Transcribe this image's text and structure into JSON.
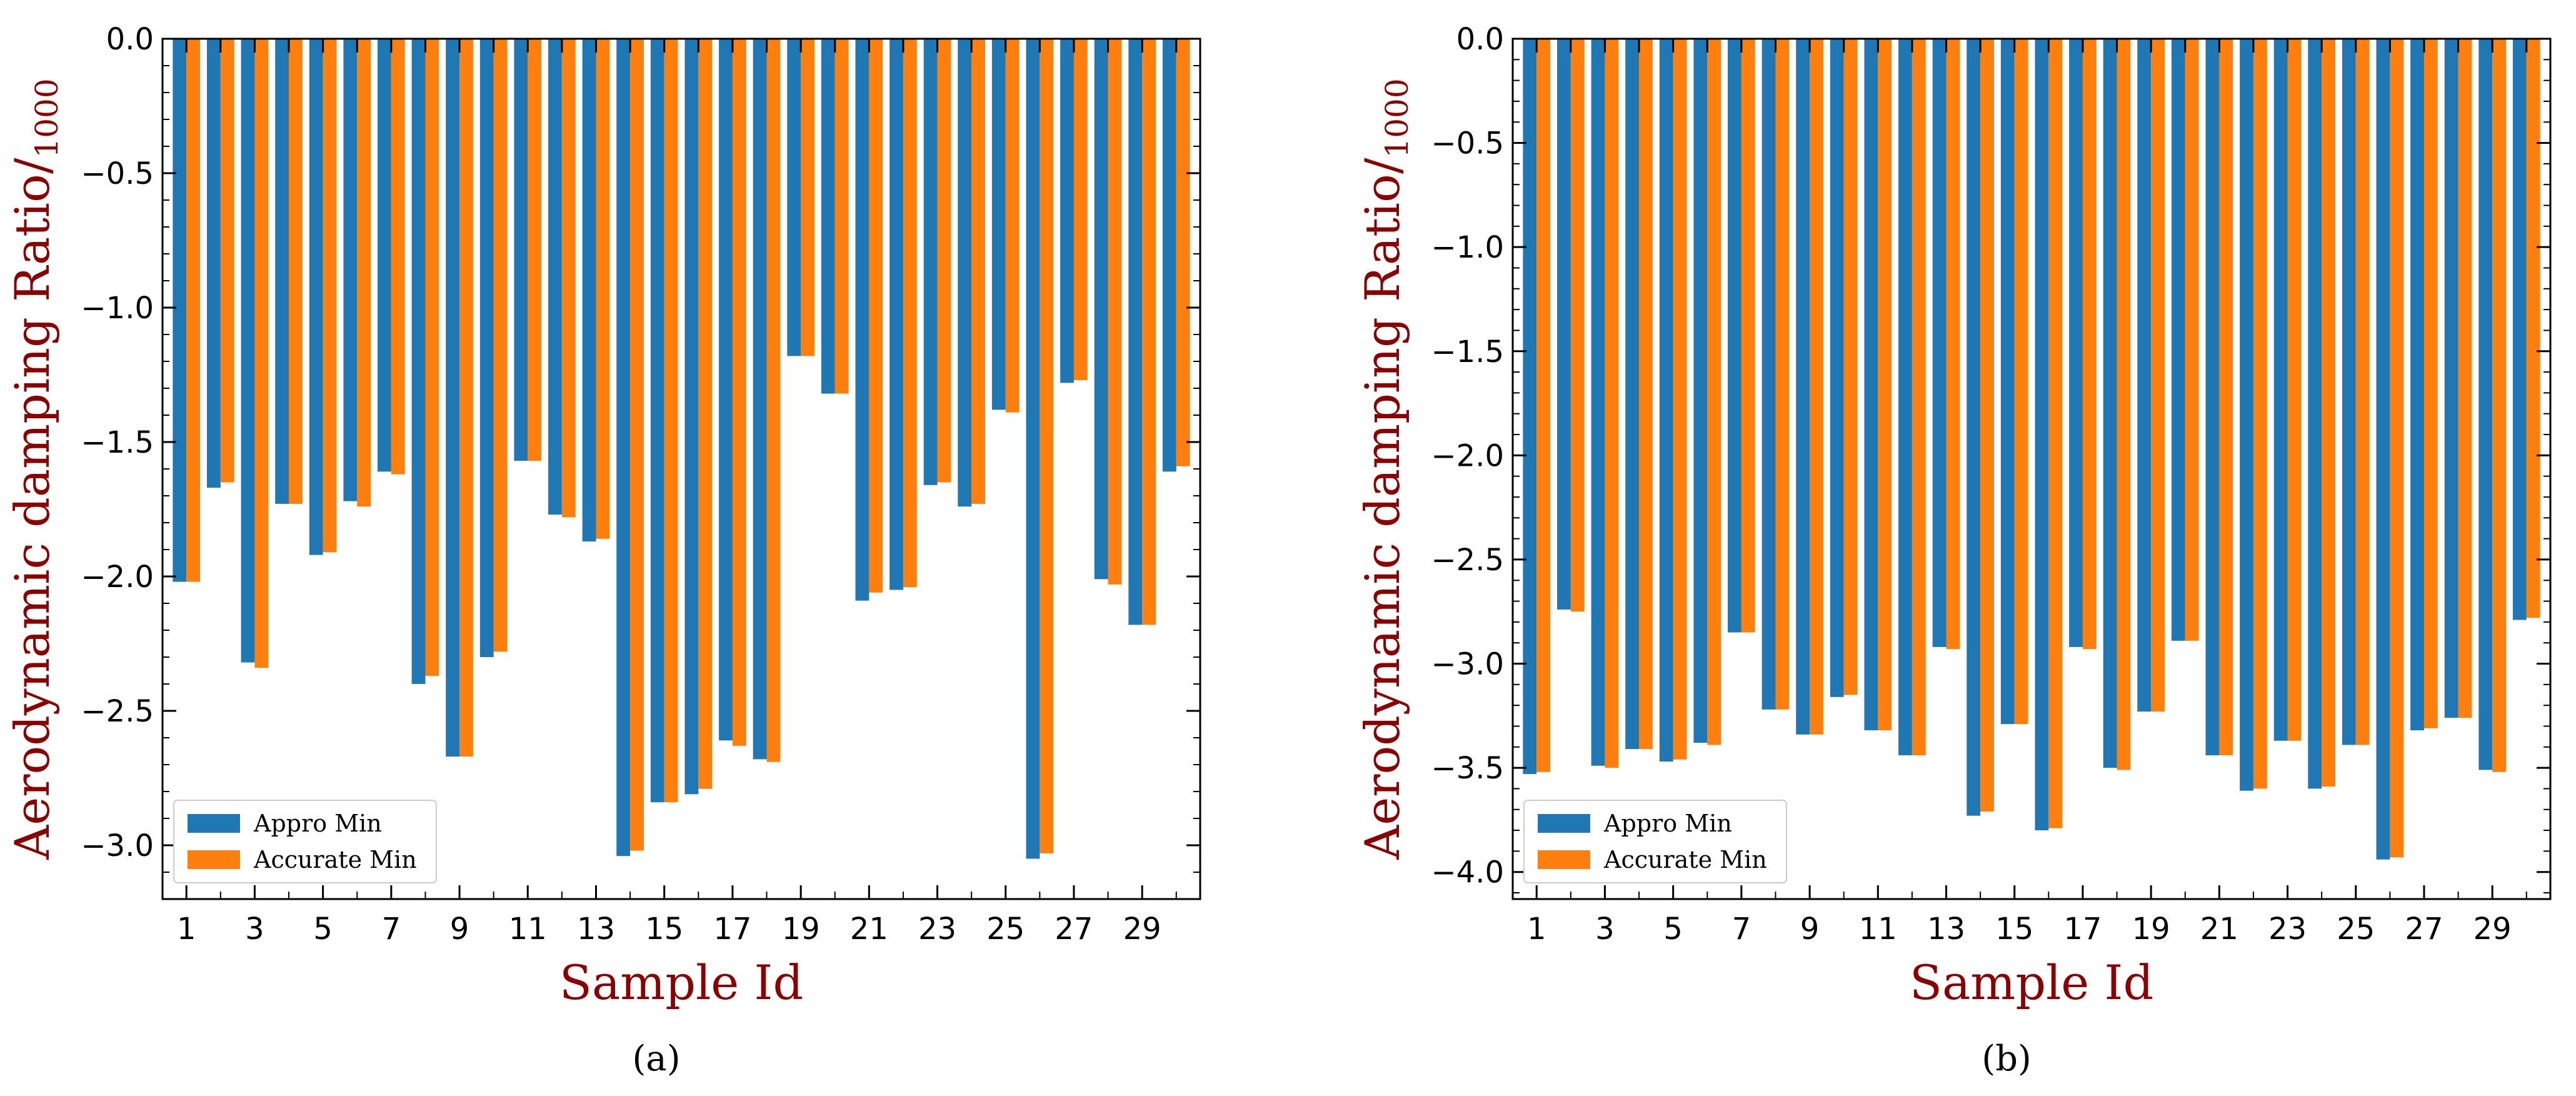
{
  "colors": {
    "appro": "#1f77b4",
    "accurate": "#ff7f0e",
    "axis_title": "#8b0000"
  },
  "chart_data": [
    {
      "type": "bar",
      "panel_caption": "(a)",
      "xlabel": "Sample Id",
      "ylabel": "Aerodynamic damping Ratio/",
      "ylabel_subscript": "1000",
      "ylim": [
        -3.2,
        0.0
      ],
      "yticks": [
        0.0,
        -0.5,
        -1.0,
        -1.5,
        -2.0,
        -2.5,
        -3.0
      ],
      "ytick_labels": [
        "0.0",
        "−0.5",
        "−1.0",
        "−1.5",
        "−2.0",
        "−2.5",
        "−3.0"
      ],
      "categories": [
        1,
        2,
        3,
        4,
        5,
        6,
        7,
        8,
        9,
        10,
        11,
        12,
        13,
        14,
        15,
        16,
        17,
        18,
        19,
        20,
        21,
        22,
        23,
        24,
        25,
        26,
        27,
        28,
        29,
        30
      ],
      "xtick_labels": [
        "1",
        "3",
        "5",
        "7",
        "9",
        "11",
        "13",
        "15",
        "17",
        "19",
        "21",
        "23",
        "25",
        "27",
        "29"
      ],
      "legend_position": "lower-left",
      "series": [
        {
          "name": "Appro Min",
          "values": [
            -2.02,
            -1.67,
            -2.32,
            -1.73,
            -1.92,
            -1.72,
            -1.61,
            -2.4,
            -2.67,
            -2.3,
            -1.57,
            -1.77,
            -1.87,
            -3.04,
            -2.84,
            -2.81,
            -2.61,
            -2.68,
            -1.18,
            -1.32,
            -2.09,
            -2.05,
            -1.66,
            -1.74,
            -1.38,
            -3.05,
            -1.28,
            -2.01,
            -2.18,
            -1.61
          ]
        },
        {
          "name": "Accurate Min",
          "values": [
            -2.02,
            -1.65,
            -2.34,
            -1.73,
            -1.91,
            -1.74,
            -1.62,
            -2.37,
            -2.67,
            -2.28,
            -1.57,
            -1.78,
            -1.86,
            -3.02,
            -2.84,
            -2.79,
            -2.63,
            -2.69,
            -1.18,
            -1.32,
            -2.06,
            -2.04,
            -1.65,
            -1.73,
            -1.39,
            -3.03,
            -1.27,
            -2.03,
            -2.18,
            -1.59
          ]
        }
      ]
    },
    {
      "type": "bar",
      "panel_caption": "(b)",
      "xlabel": "Sample Id",
      "ylabel": "Aerodynamic damping Ratio/",
      "ylabel_subscript": "1000",
      "ylim": [
        -4.13,
        0.0
      ],
      "yticks": [
        0.0,
        -0.5,
        -1.0,
        -1.5,
        -2.0,
        -2.5,
        -3.0,
        -3.5,
        -4.0
      ],
      "ytick_labels": [
        "0.0",
        "−0.5",
        "−1.0",
        "−1.5",
        "−2.0",
        "−2.5",
        "−3.0",
        "−3.5",
        "−4.0"
      ],
      "categories": [
        1,
        2,
        3,
        4,
        5,
        6,
        7,
        8,
        9,
        10,
        11,
        12,
        13,
        14,
        15,
        16,
        17,
        18,
        19,
        20,
        21,
        22,
        23,
        24,
        25,
        26,
        27,
        28,
        29,
        30
      ],
      "xtick_labels": [
        "1",
        "3",
        "5",
        "7",
        "9",
        "11",
        "13",
        "15",
        "17",
        "19",
        "21",
        "23",
        "25",
        "27",
        "29"
      ],
      "legend_position": "lower-left",
      "series": [
        {
          "name": "Appro Min",
          "values": [
            -3.53,
            -2.74,
            -3.49,
            -3.41,
            -3.47,
            -3.38,
            -2.85,
            -3.22,
            -3.34,
            -3.16,
            -3.32,
            -3.44,
            -2.92,
            -3.73,
            -3.29,
            -3.8,
            -2.92,
            -3.5,
            -3.23,
            -2.89,
            -3.44,
            -3.61,
            -3.37,
            -3.6,
            -3.39,
            -3.94,
            -3.32,
            -3.26,
            -3.51,
            -2.79
          ]
        },
        {
          "name": "Accurate Min",
          "values": [
            -3.52,
            -2.75,
            -3.5,
            -3.41,
            -3.46,
            -3.39,
            -2.85,
            -3.22,
            -3.34,
            -3.15,
            -3.32,
            -3.44,
            -2.93,
            -3.71,
            -3.29,
            -3.79,
            -2.93,
            -3.51,
            -3.23,
            -2.89,
            -3.44,
            -3.6,
            -3.37,
            -3.59,
            -3.39,
            -3.93,
            -3.31,
            -3.26,
            -3.52,
            -2.78
          ]
        }
      ]
    }
  ]
}
